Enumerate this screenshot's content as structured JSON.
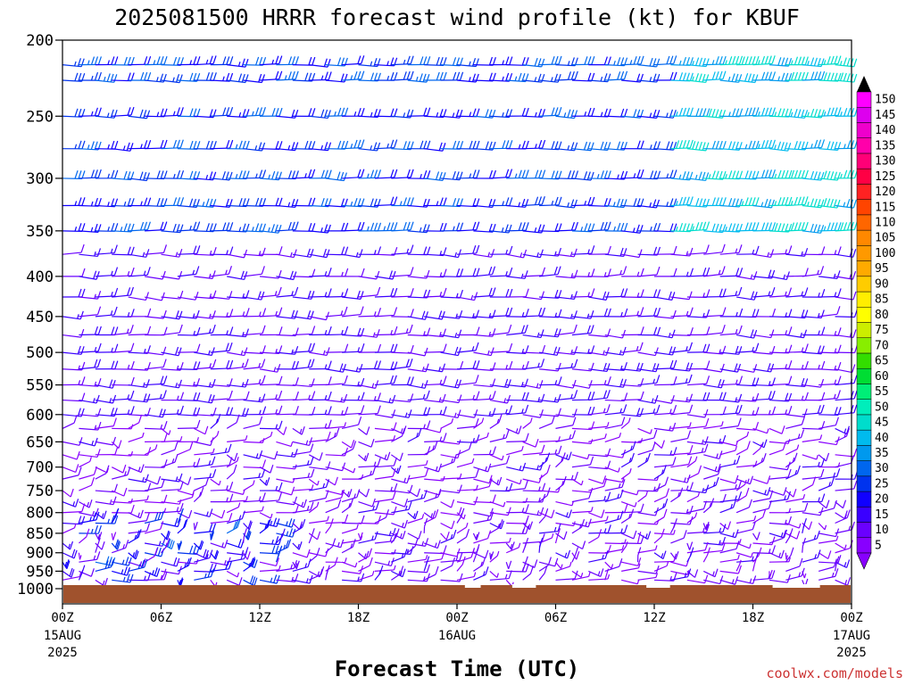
{
  "chart_data": {
    "type": "wind-barb time-height cross section",
    "title": "2025081500 HRRR forecast wind profile (kt) for KBUF",
    "xlabel": "Forecast Time (UTC)",
    "ylabel": "",
    "y_ticks": [
      "200",
      "250",
      "300",
      "350",
      "400",
      "450",
      "500",
      "550",
      "600",
      "650",
      "700",
      "750",
      "800",
      "850",
      "900",
      "950",
      "1000"
    ],
    "y_tick_values": [
      200,
      250,
      300,
      350,
      400,
      450,
      500,
      550,
      600,
      650,
      700,
      750,
      800,
      850,
      900,
      950,
      1000
    ],
    "ylim": [
      200,
      1000
    ],
    "y_scale": "log",
    "x_ticks": [
      {
        "hour": 0,
        "label": "00Z",
        "sub1": "15AUG",
        "sub2": "2025"
      },
      {
        "hour": 6,
        "label": "06Z",
        "sub1": "",
        "sub2": ""
      },
      {
        "hour": 12,
        "label": "12Z",
        "sub1": "",
        "sub2": ""
      },
      {
        "hour": 18,
        "label": "18Z",
        "sub1": "",
        "sub2": ""
      },
      {
        "hour": 24,
        "label": "00Z",
        "sub1": "16AUG",
        "sub2": ""
      },
      {
        "hour": 30,
        "label": "06Z",
        "sub1": "",
        "sub2": ""
      },
      {
        "hour": 36,
        "label": "12Z",
        "sub1": "",
        "sub2": ""
      },
      {
        "hour": 42,
        "label": "18Z",
        "sub1": "",
        "sub2": ""
      },
      {
        "hour": 48,
        "label": "00Z",
        "sub1": "17AUG",
        "sub2": "2025"
      }
    ],
    "xlim_hours": [
      0,
      48
    ],
    "grid": false,
    "legend": "right colorbar",
    "colorbar": {
      "labels": [
        "5",
        "10",
        "15",
        "20",
        "25",
        "30",
        "35",
        "40",
        "45",
        "50",
        "55",
        "60",
        "65",
        "70",
        "75",
        "80",
        "85",
        "90",
        "95",
        "100",
        "105",
        "110",
        "115",
        "120",
        "125",
        "130",
        "135",
        "140",
        "145",
        "150"
      ],
      "colors": [
        "#8800ff",
        "#6a00ff",
        "#3a00ff",
        "#1000ff",
        "#0033ee",
        "#0066ee",
        "#0099ee",
        "#00bbee",
        "#00ddcc",
        "#00eebb",
        "#00ee77",
        "#00dd33",
        "#33dd00",
        "#88ee00",
        "#ccee00",
        "#ffff00",
        "#ffee00",
        "#ffcc00",
        "#ffaa00",
        "#ff9900",
        "#ff8800",
        "#ff6600",
        "#ff4400",
        "#ff2222",
        "#ff0044",
        "#ff0077",
        "#ff00aa",
        "#ee00cc",
        "#dd00ee",
        "#ff00ff"
      ]
    },
    "ground_color": "#a0522d",
    "wind_barbs": "cross-section of wind barbs by pressure level and forecast hour, colored by speed (kt)"
  },
  "credit": "coolwx.com/models"
}
